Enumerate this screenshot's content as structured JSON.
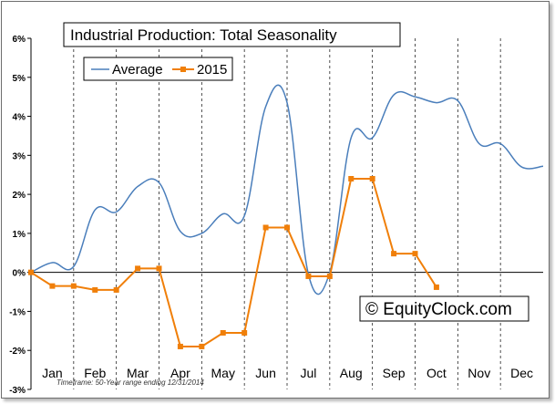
{
  "chart_data": {
    "type": "line",
    "title": "Industrial Production: Total Seasonality",
    "footnote": "Timeframe: 50-Year range ending 12/31/2014",
    "watermark": "© EquityClock.com",
    "categories": [
      "Jan",
      "Feb",
      "Mar",
      "Apr",
      "May",
      "Jun",
      "Jul",
      "Aug",
      "Sep",
      "Oct",
      "Nov",
      "Dec"
    ],
    "y_tick_labels": [
      "6%",
      "5%",
      "4%",
      "3%",
      "2%",
      "1%",
      "0%",
      "-1%",
      "-2%",
      "-3%"
    ],
    "ylim": [
      -3,
      6
    ],
    "grid": "vertical dashed lines between months",
    "legend_position": "top-left",
    "series": [
      {
        "name": "Average",
        "color": "#4a7ebb",
        "marker": "none",
        "x": [
          0,
          0.5,
          1.0,
          1.5,
          2.0,
          2.5,
          3.0,
          3.5,
          4.0,
          4.5,
          5.0,
          5.5,
          6.0,
          6.5,
          7.0,
          7.5,
          8.0,
          8.5,
          9.0,
          9.5,
          10.0,
          10.5,
          11.0,
          11.5,
          12.0
        ],
        "values": [
          0.0,
          0.25,
          0.15,
          1.6,
          1.55,
          2.2,
          2.3,
          1.05,
          1.0,
          1.5,
          1.45,
          4.25,
          4.35,
          -0.05,
          0.0,
          3.45,
          3.45,
          4.55,
          4.5,
          4.35,
          4.4,
          3.3,
          3.3,
          2.7,
          2.72
        ]
      },
      {
        "name": "2015",
        "color": "#f07f09",
        "marker": "square",
        "x": [
          0,
          0.5,
          1.0,
          1.5,
          2.0,
          2.5,
          3.0,
          3.5,
          4.0,
          4.5,
          5.0,
          5.5,
          6.0,
          6.5,
          7.0,
          7.5,
          8.0,
          8.5,
          9.0,
          9.5
        ],
        "values": [
          0.0,
          -0.35,
          -0.35,
          -0.45,
          -0.45,
          0.1,
          0.1,
          -1.9,
          -1.9,
          -1.55,
          -1.55,
          1.15,
          1.15,
          -0.1,
          -0.1,
          2.4,
          2.4,
          0.48,
          0.48,
          -0.38
        ]
      }
    ]
  }
}
